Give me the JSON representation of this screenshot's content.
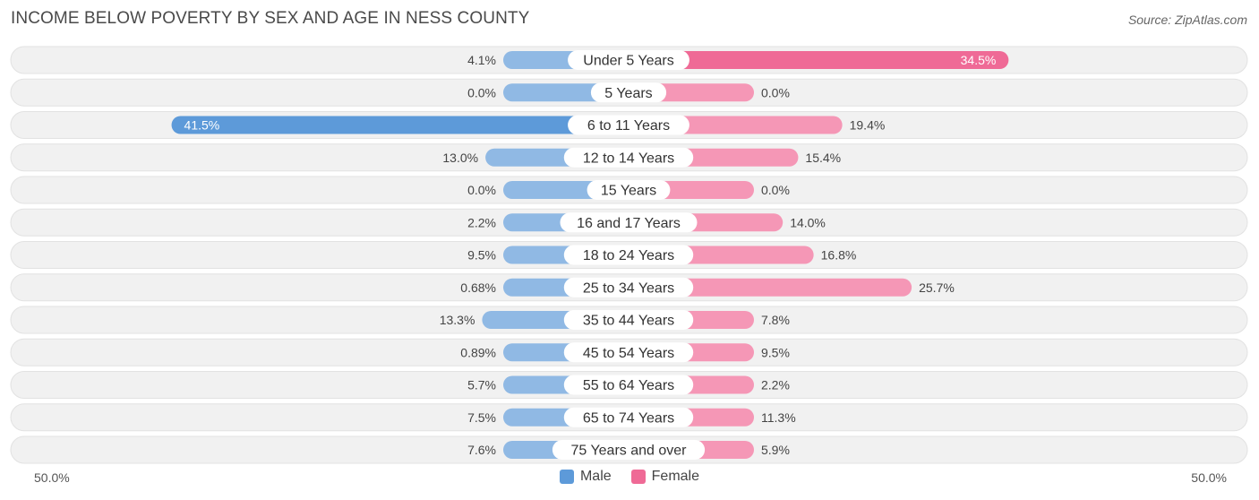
{
  "title": "INCOME BELOW POVERTY BY SEX AND AGE IN NESS COUNTY",
  "source": "Source: ZipAtlas.com",
  "colors": {
    "male": "#90b9e4",
    "male_strong": "#5d9ad9",
    "female": "#f597b6",
    "female_strong": "#ef6a96",
    "row_bg": "#f1f1f1"
  },
  "chart_data": {
    "type": "bar",
    "orientation": "horizontal-diverging",
    "title": "INCOME BELOW POVERTY BY SEX AND AGE IN NESS COUNTY",
    "categories": [
      "Under 5 Years",
      "5 Years",
      "6 to 11 Years",
      "12 to 14 Years",
      "15 Years",
      "16 and 17 Years",
      "18 to 24 Years",
      "25 to 34 Years",
      "35 to 44 Years",
      "45 to 54 Years",
      "55 to 64 Years",
      "65 to 74 Years",
      "75 Years and over"
    ],
    "series": [
      {
        "name": "Male",
        "values": [
          4.1,
          0.0,
          41.5,
          13.0,
          0.0,
          2.2,
          9.5,
          0.68,
          13.3,
          0.89,
          5.7,
          7.5,
          7.6
        ],
        "labels": [
          "4.1%",
          "0.0%",
          "41.5%",
          "13.0%",
          "0.0%",
          "2.2%",
          "9.5%",
          "0.68%",
          "13.3%",
          "0.89%",
          "5.7%",
          "7.5%",
          "7.6%"
        ]
      },
      {
        "name": "Female",
        "values": [
          34.5,
          0.0,
          19.4,
          15.4,
          0.0,
          14.0,
          16.8,
          25.7,
          7.8,
          9.5,
          2.2,
          11.3,
          5.9
        ],
        "labels": [
          "34.5%",
          "0.0%",
          "19.4%",
          "15.4%",
          "0.0%",
          "14.0%",
          "16.8%",
          "25.7%",
          "7.8%",
          "9.5%",
          "2.2%",
          "11.3%",
          "5.9%"
        ]
      }
    ],
    "xlim": [
      -50,
      50
    ],
    "axis_left_label": "50.0%",
    "axis_right_label": "50.0%",
    "legend": [
      "Male",
      "Female"
    ],
    "legend_position": "bottom-center"
  }
}
